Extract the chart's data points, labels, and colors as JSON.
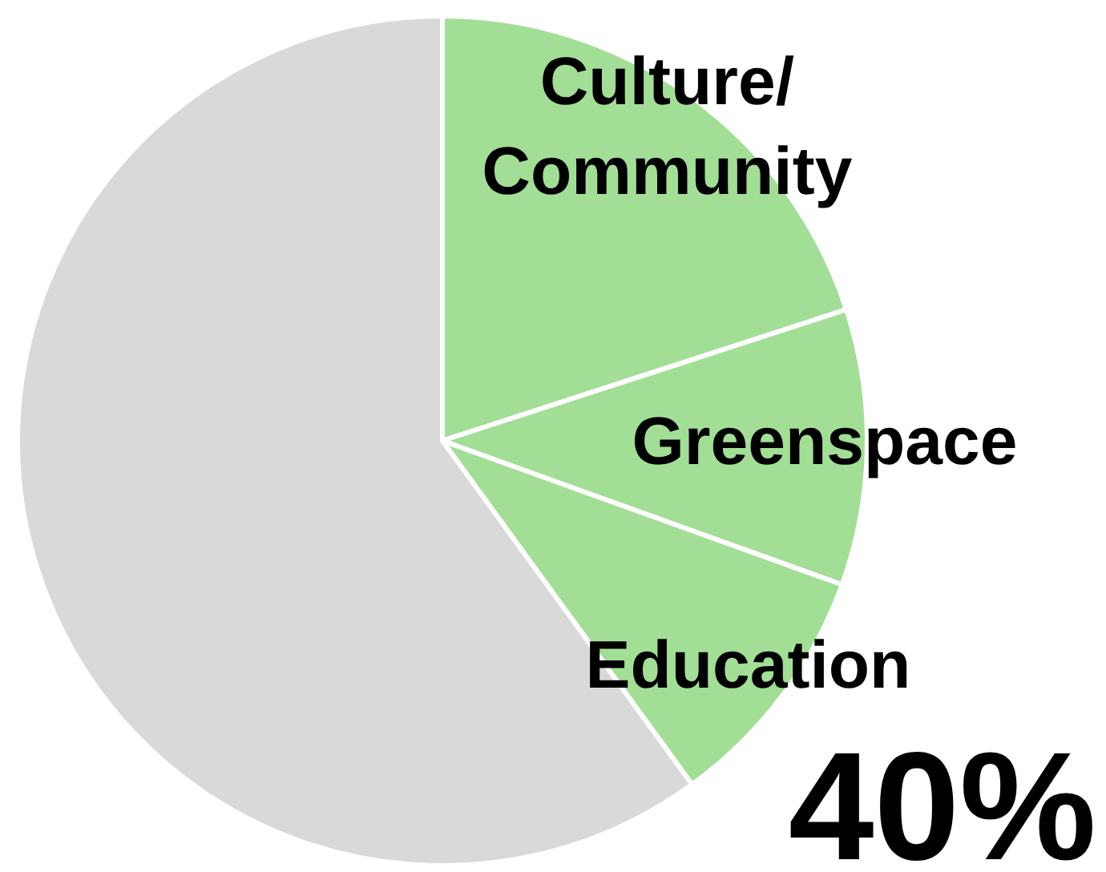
{
  "chart_data": {
    "type": "pie",
    "categories": [
      "Culture/Community",
      "Greenspace",
      "Education",
      null
    ],
    "values": [
      20,
      10.5,
      9.5,
      60
    ],
    "colors": [
      "#a3de96",
      "#a3de96",
      "#a3de96",
      "#d9d9d9"
    ],
    "annotations": [
      "40%"
    ]
  }
}
